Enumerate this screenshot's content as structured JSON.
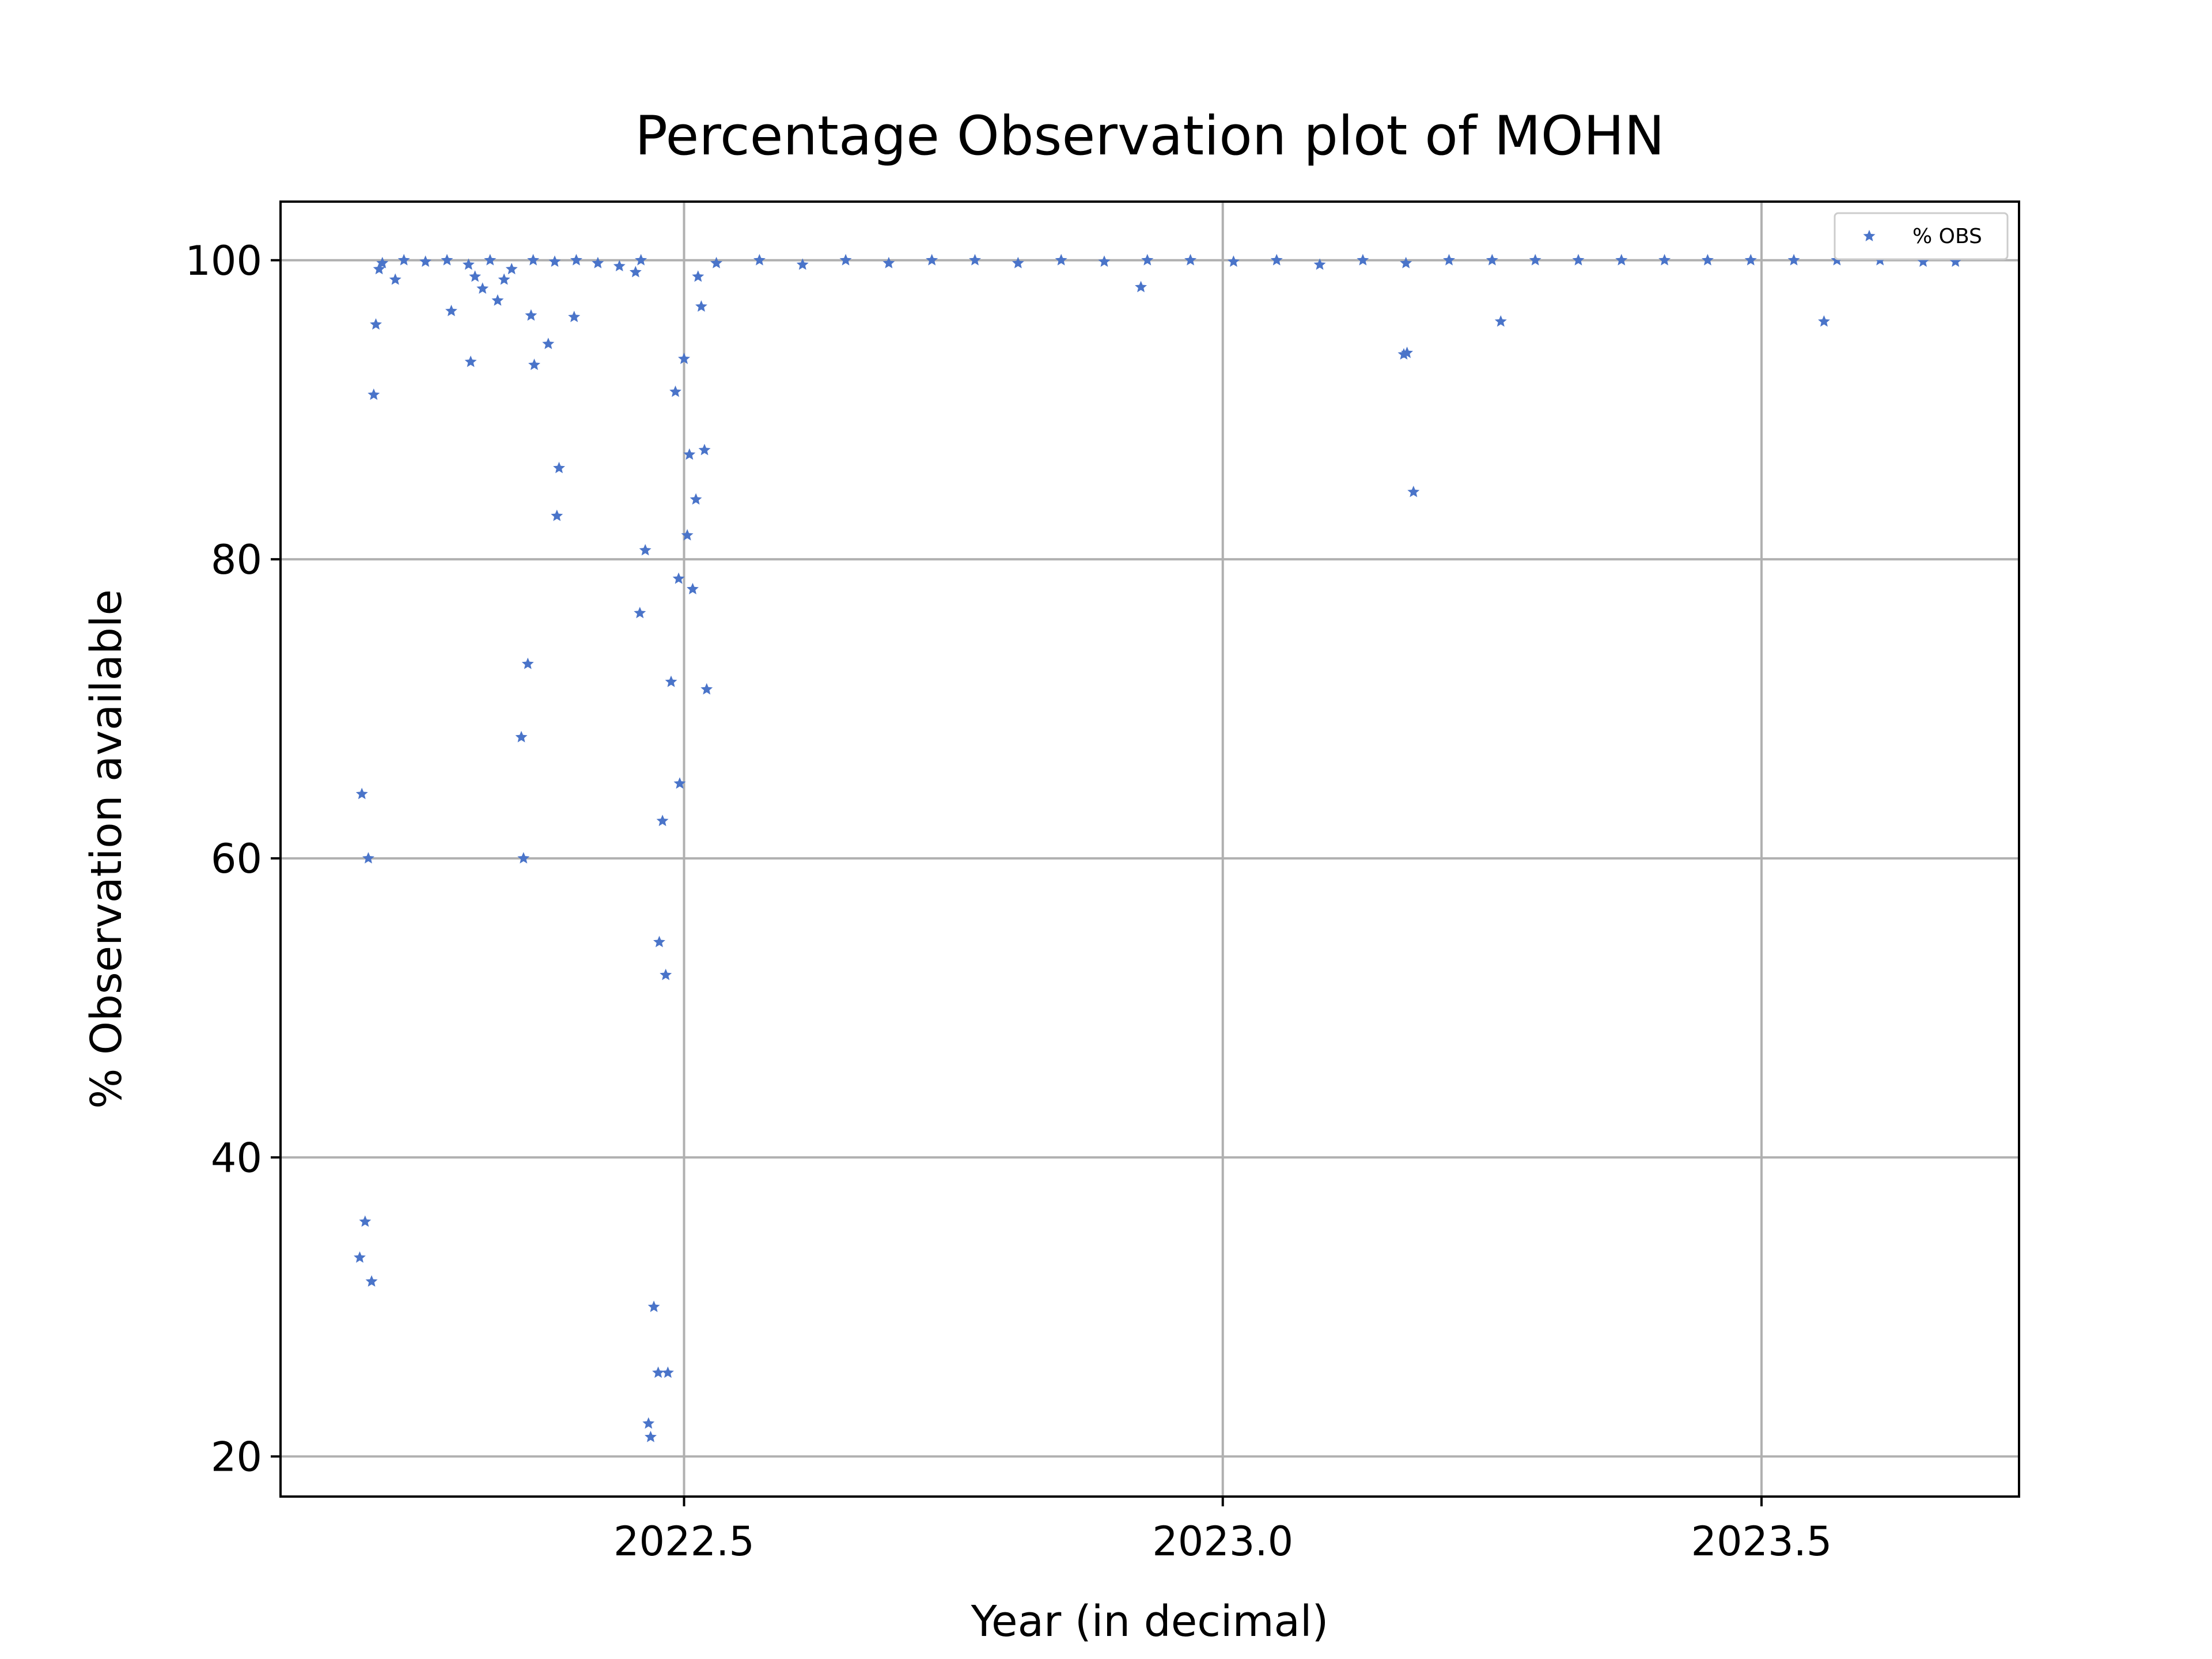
{
  "chart_data": {
    "type": "scatter",
    "title": "Percentage Observation plot of MOHN",
    "x_label": "Year (in decimal)",
    "y_label": "% Observation available",
    "xlim": [
      2022.1255,
      2023.739
    ],
    "ylim": [
      17.32,
      103.92
    ],
    "xticks": [
      {
        "value": 2022.5,
        "label": "2022.5"
      },
      {
        "value": 2023.0,
        "label": "2023.0"
      },
      {
        "value": 2023.5,
        "label": "2023.5"
      }
    ],
    "yticks": [
      20,
      40,
      60,
      80,
      100
    ],
    "grid": true,
    "legend": "upper right",
    "series": [
      {
        "name": "% OBS",
        "color": "#4a74c9",
        "x": [
          2022.199,
          2022.201,
          2022.204,
          2022.207,
          2022.21,
          2022.212,
          2022.214,
          2022.217,
          2022.232,
          2022.284,
          2022.302,
          2022.306,
          2022.313,
          2022.327,
          2022.333,
          2022.349,
          2022.351,
          2022.355,
          2022.358,
          2022.361,
          2022.374,
          2022.382,
          2022.384,
          2022.398,
          2022.455,
          2022.459,
          2022.464,
          2022.467,
          2022.469,
          2022.472,
          2022.476,
          2022.477,
          2022.48,
          2022.483,
          2022.485,
          2022.488,
          2022.492,
          2022.495,
          2022.496,
          2022.5,
          2022.503,
          2022.505,
          2022.508,
          2022.511,
          2022.513,
          2022.516,
          2022.519,
          2022.521,
          2022.924,
          2023.168,
          2023.171,
          2023.177,
          2023.258,
          2023.558,
          2022.22,
          2022.24,
          2022.26,
          2022.28,
          2022.3,
          2022.32,
          2022.34,
          2022.36,
          2022.38,
          2022.4,
          2022.42,
          2022.44,
          2022.46,
          2022.53,
          2022.57,
          2022.61,
          2022.65,
          2022.69,
          2022.73,
          2022.77,
          2022.81,
          2022.85,
          2022.89,
          2022.93,
          2022.97,
          2023.01,
          2023.05,
          2023.09,
          2023.13,
          2023.17,
          2023.21,
          2023.25,
          2023.29,
          2023.33,
          2023.37,
          2023.41,
          2023.45,
          2023.49,
          2023.53,
          2023.57,
          2023.61,
          2023.65,
          2023.68
        ],
        "values": [
          33.3,
          64.3,
          35.7,
          60.0,
          31.7,
          91.0,
          95.7,
          99.4,
          98.7,
          96.6,
          93.2,
          98.9,
          98.1,
          97.3,
          98.7,
          68.1,
          60.0,
          73.0,
          96.3,
          93.0,
          94.4,
          82.9,
          86.1,
          96.2,
          99.2,
          76.4,
          80.6,
          22.2,
          21.3,
          30.0,
          25.6,
          54.4,
          62.5,
          52.2,
          25.6,
          71.8,
          91.2,
          78.7,
          65.0,
          93.4,
          81.6,
          87.0,
          78.0,
          84.0,
          98.9,
          96.9,
          87.3,
          71.3,
          98.2,
          93.7,
          93.8,
          84.5,
          95.9,
          95.9,
          99.8,
          100,
          99.9,
          100,
          99.7,
          100,
          99.4,
          100,
          99.9,
          100,
          99.8,
          99.6,
          100,
          99.8,
          100,
          99.7,
          100,
          99.8,
          100,
          100,
          99.8,
          100,
          99.9,
          100,
          100,
          99.9,
          100,
          99.7,
          100,
          99.8,
          100,
          100,
          100,
          100,
          100,
          100,
          100,
          100,
          100,
          100,
          100,
          99.9,
          99.9
        ]
      }
    ]
  }
}
